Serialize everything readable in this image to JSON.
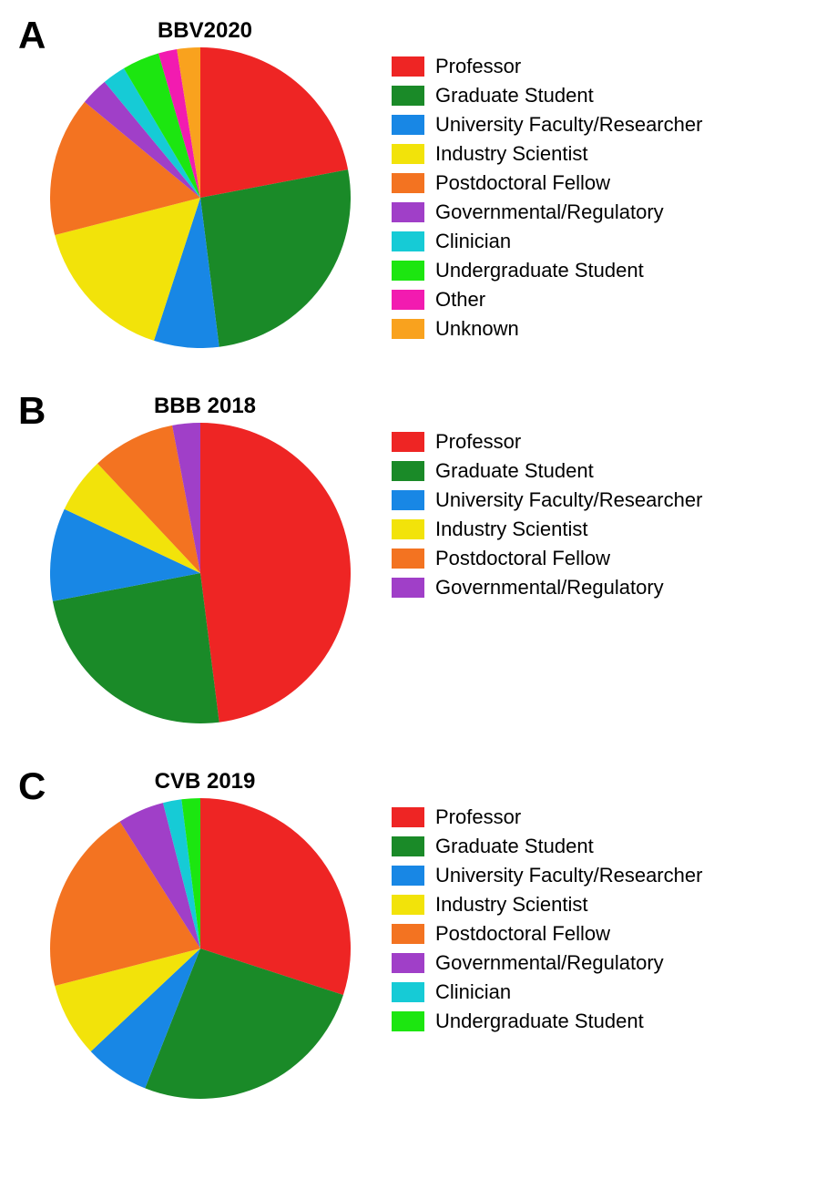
{
  "background_color": "#ffffff",
  "panel_label_fontsize": 42,
  "title_fontsize": 24,
  "legend_fontsize": 22,
  "legend_swatch_width": 36,
  "legend_swatch_height": 22,
  "pie_radius": 165,
  "start_angle_deg": 0,
  "panels": [
    {
      "panel_label": "A",
      "title": "BBV2020",
      "slices": [
        {
          "label": "Professor",
          "value": 22,
          "color": "#ee2524"
        },
        {
          "label": "Graduate Student",
          "value": 26,
          "color": "#1a8a28"
        },
        {
          "label": "University Faculty/Researcher",
          "value": 7,
          "color": "#1887e5"
        },
        {
          "label": "Industry Scientist",
          "value": 16,
          "color": "#f2e30a"
        },
        {
          "label": "Postdoctoral Fellow",
          "value": 15,
          "color": "#f37321"
        },
        {
          "label": "Governmental/Regulatory",
          "value": 3,
          "color": "#a03fc8"
        },
        {
          "label": "Clinician",
          "value": 2.5,
          "color": "#16cbd6"
        },
        {
          "label": "Undergraduate Student",
          "value": 4,
          "color": "#1ce610"
        },
        {
          "label": "Other",
          "value": 2,
          "color": "#f21bb0"
        },
        {
          "label": "Unknown",
          "value": 2.5,
          "color": "#f9a21e"
        }
      ]
    },
    {
      "panel_label": "B",
      "title": "BBB 2018",
      "slices": [
        {
          "label": "Professor",
          "value": 48,
          "color": "#ee2524"
        },
        {
          "label": "Graduate Student",
          "value": 24,
          "color": "#1a8a28"
        },
        {
          "label": "University Faculty/Researcher",
          "value": 10,
          "color": "#1887e5"
        },
        {
          "label": "Industry Scientist",
          "value": 6,
          "color": "#f2e30a"
        },
        {
          "label": "Postdoctoral Fellow",
          "value": 9,
          "color": "#f37321"
        },
        {
          "label": "Governmental/Regulatory",
          "value": 3,
          "color": "#a03fc8"
        }
      ]
    },
    {
      "panel_label": "C",
      "title": "CVB 2019",
      "slices": [
        {
          "label": "Professor",
          "value": 30,
          "color": "#ee2524"
        },
        {
          "label": "Graduate Student",
          "value": 26,
          "color": "#1a8a28"
        },
        {
          "label": "University Faculty/Researcher",
          "value": 7,
          "color": "#1887e5"
        },
        {
          "label": "Industry Scientist",
          "value": 8,
          "color": "#f2e30a"
        },
        {
          "label": "Postdoctoral Fellow",
          "value": 20,
          "color": "#f37321"
        },
        {
          "label": "Governmental/Regulatory",
          "value": 5,
          "color": "#a03fc8"
        },
        {
          "label": "Clinician",
          "value": 2,
          "color": "#16cbd6"
        },
        {
          "label": "Undergraduate Student",
          "value": 2,
          "color": "#1ce610"
        }
      ]
    }
  ]
}
